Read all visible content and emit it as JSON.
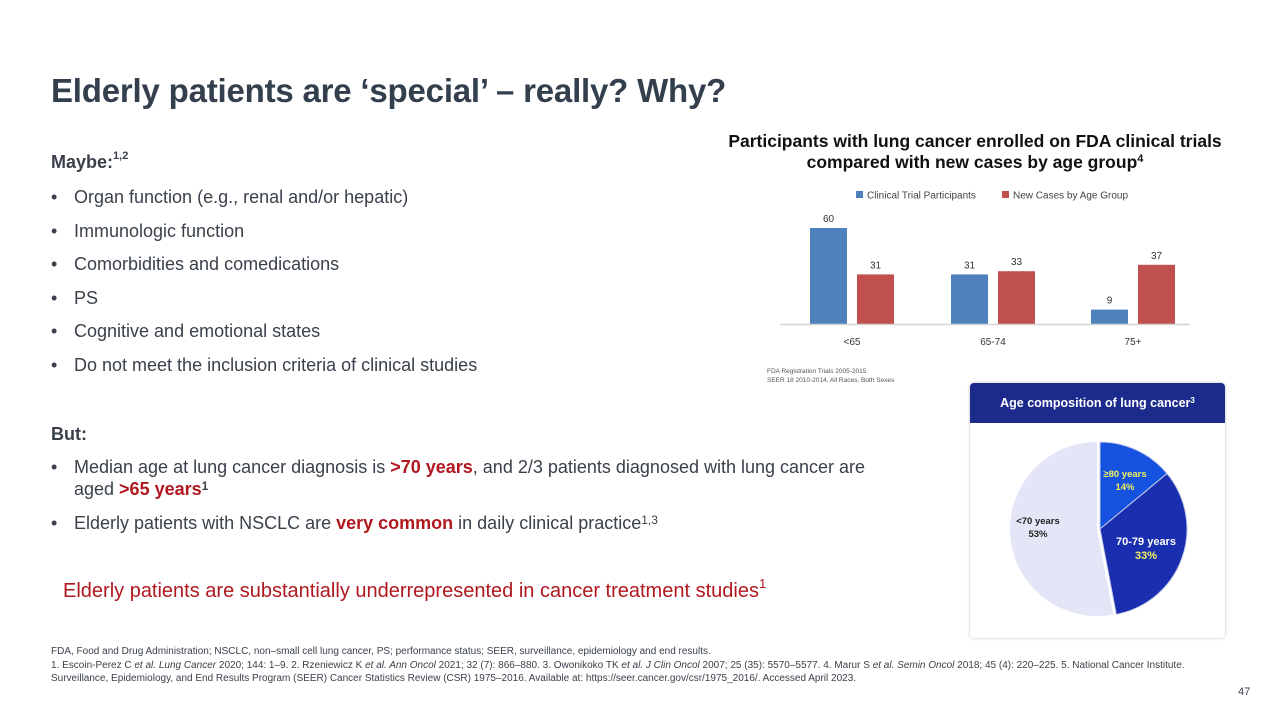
{
  "slide": {
    "title": "Elderly patients are ‘special’ – really? Why?",
    "page_number": "47"
  },
  "maybe_section": {
    "heading": "Maybe:",
    "heading_refs": "1,2",
    "bullets": [
      "Organ function (e.g., renal and/or hepatic)",
      "Immunologic  function",
      "Comorbidities and comedications",
      "PS",
      "Cognitive and emotional states",
      "Do not meet the inclusion criteria of clinical studies"
    ]
  },
  "but_section": {
    "heading": "But:",
    "bullet1": {
      "part1": "Median age at lung cancer diagnosis is ",
      "highlight1": ">70 years",
      "part2": ", and 2/3 patients diagnosed with lung cancer are aged ",
      "highlight2": ">65 years",
      "ref": "1"
    },
    "bullet2": {
      "part1": "Elderly patients with NSCLC are ",
      "highlight": "very common",
      "part2": " in daily clinical practice",
      "ref": "1,3"
    }
  },
  "callout": {
    "text": "Elderly patients are substantially underrepresented in cancer treatment studies",
    "ref": "1"
  },
  "footnotes": {
    "abbreviations": "FDA,  Food and Drug Administration; NSCLC, non–small cell lung cancer, PS; performance status; SEER, surveillance, epidemiology and end results.",
    "refs": [
      {
        "pre": "1. Escoin-Perez C ",
        "etal": "et al.",
        "journal": " Lung Cancer",
        "post": " 2020; 144: 1–9. "
      },
      {
        "pre": "2. Rzeniewicz K ",
        "etal": "et al.",
        "journal": " Ann Oncol",
        "post": " 2021; 32 (7):  866–880. "
      },
      {
        "pre": "3. Owonikoko TK ",
        "etal": "et al.",
        "journal": " J Clin Oncol",
        "post": " 2007; 25 (35): 5570–5577. "
      },
      {
        "pre": "4. Marur S ",
        "etal": "et al.",
        "journal": " Semin Oncol",
        "post": " 2018; 45 (4): 220–225. "
      }
    ],
    "ref5": "5. National Cancer Institute. Surveillance, Epidemiology, and End Results Program (SEER) Cancer Statistics Review (CSR) 1975–2016. Available at: https://seer.cancer.gov/csr/1975_2016/. Accessed April 2023."
  },
  "bar_chart_title": {
    "text": "Participants with lung cancer enrolled on FDA clinical trials compared with new cases by age group",
    "ref": "4"
  },
  "bar_chart_notes": [
    "FDA Registration Trials 2005-2015",
    "SEER 18 2010-2014, All Races, Both Sexes"
  ],
  "pie_card": {
    "title": "Age composition of lung cancer",
    "ref": "3"
  },
  "chart_data": [
    {
      "type": "bar",
      "title": "Participants with lung cancer enrolled on FDA clinical trials compared with new cases by age group",
      "categories": [
        "<65",
        "65-74",
        "75+"
      ],
      "series": [
        {
          "name": "Clinical Trial Participants",
          "color": "#4f81bd",
          "values": [
            60,
            31,
            9
          ]
        },
        {
          "name": "New Cases by Age Group",
          "color": "#c0504d",
          "values": [
            31,
            33,
            37
          ]
        }
      ],
      "xlabel": "",
      "ylabel": "",
      "ylim": [
        0,
        60
      ],
      "grid": false,
      "legend": "top-center",
      "data_labels": true
    },
    {
      "type": "pie",
      "title": "Age composition of lung cancer",
      "slices": [
        {
          "label": "≥80 years",
          "value": 14,
          "display": "14%",
          "color": "#1552e0",
          "label_color": "#f2f25c",
          "value_color": "#f2f25c"
        },
        {
          "label": "70-79 years",
          "value": 33,
          "display": "33%",
          "color": "#1a2fb0",
          "label_color": "#ffffff",
          "value_color": "#f2f25c"
        },
        {
          "label": "<70 years",
          "value": 53,
          "display": "53%",
          "color": "#e4e6f7",
          "label_color": "#222222",
          "value_color": "#222222"
        }
      ],
      "exploded": [
        "≥80 years",
        "70-79 years"
      ]
    }
  ]
}
